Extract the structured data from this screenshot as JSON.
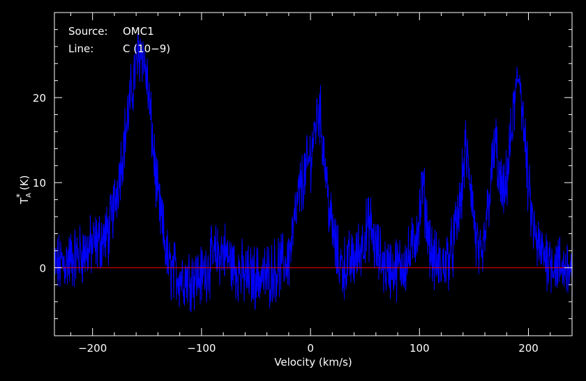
{
  "chart_data": {
    "type": "line",
    "title": "",
    "xlabel": "Velocity (km/s)",
    "ylabel_main": "T",
    "ylabel_sup": "*",
    "ylabel_sub": "A",
    "ylabel_unit": " (K)",
    "xlim": [
      -235,
      240
    ],
    "ylim": [
      -8,
      30
    ],
    "x_ticks": [
      -200,
      -100,
      0,
      100,
      200
    ],
    "x_tick_labels": [
      "−200",
      "−100",
      "0",
      "100",
      "200"
    ],
    "y_ticks": [
      0,
      10,
      20
    ],
    "y_tick_labels": [
      "0",
      "10",
      "20"
    ],
    "annotations": [
      {
        "label": "Source:",
        "value": "OMC1"
      },
      {
        "label": "Line:",
        "value": "C (10−9)"
      }
    ],
    "baseline": 0,
    "noise_amplitude": 3,
    "series": [
      {
        "color": "#0000ff",
        "x": [
          -235,
          -220,
          -205,
          -195,
          -185,
          -178,
          -172,
          -165,
          -160,
          -155,
          -150,
          -145,
          -140,
          -135,
          -130,
          -120,
          -110,
          -100,
          -90,
          -80,
          -70,
          -60,
          -50,
          -40,
          -30,
          -20,
          -15,
          -10,
          -5,
          0,
          5,
          8,
          12,
          18,
          25,
          30,
          40,
          45,
          50,
          55,
          60,
          70,
          80,
          90,
          95,
          100,
          103,
          107,
          112,
          120,
          130,
          138,
          142,
          147,
          152,
          157,
          162,
          167,
          170,
          173,
          178,
          183,
          188,
          192,
          196,
          200,
          205,
          210,
          220,
          230,
          240
        ],
        "y": [
          0,
          1,
          2,
          3,
          4,
          9,
          14,
          20,
          24,
          26,
          22,
          15,
          8,
          4,
          0,
          -1,
          -1,
          -1,
          1,
          2,
          0,
          -1,
          -1,
          -1,
          0,
          1,
          5,
          9,
          11,
          13,
          17,
          19,
          14,
          6,
          1,
          0,
          1,
          2,
          4,
          5,
          2,
          0,
          0,
          1,
          3,
          6,
          10,
          5,
          1,
          0,
          2,
          8,
          14,
          10,
          3,
          0,
          6,
          12,
          15,
          10,
          8,
          14,
          20,
          23,
          16,
          9,
          4,
          2,
          1,
          0,
          0
        ]
      },
      {
        "color": "#ff0000",
        "x": [
          -235,
          240
        ],
        "y": [
          0,
          0
        ]
      }
    ]
  }
}
